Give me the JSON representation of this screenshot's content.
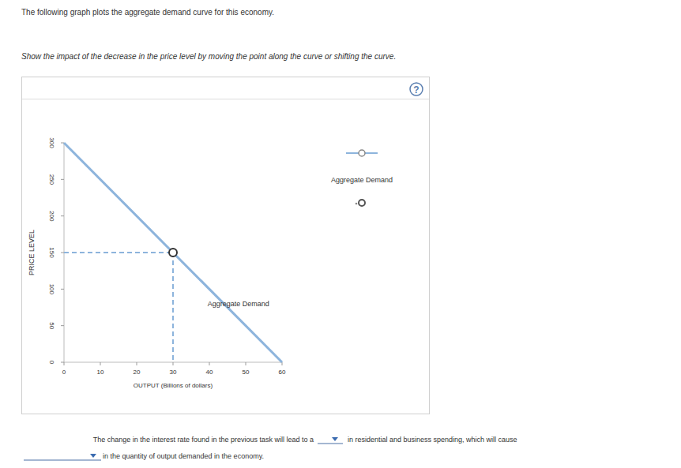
{
  "page": {
    "intro": "The following graph plots the aggregate demand curve for this economy.",
    "instruction": "Show the impact of the decrease in the price level by moving the point along the curve or shifting the curve.",
    "help_icon": "?",
    "sentence": [
      "The change in the interest rate found in the previous task will lead to a",
      "in residential and business spending, which will cause",
      "in the quantity of output demanded in the economy."
    ]
  },
  "chart_data": {
    "type": "line",
    "x_label": "OUTPUT (Billions of dollars)",
    "y_label": "PRICE LEVEL",
    "x": [
      0,
      60
    ],
    "series": [
      {
        "name": "Aggregate Demand",
        "color": "#8db4dc",
        "values": [
          300,
          0
        ]
      }
    ],
    "marked_point": {
      "x": 30,
      "y": 150
    },
    "annotations": [
      {
        "text": "Aggregate Demand",
        "x": 48,
        "y": 77
      }
    ],
    "xlim": [
      0,
      60
    ],
    "ylim": [
      0,
      300
    ],
    "xticks": [
      0,
      10,
      20,
      30,
      40,
      50,
      60
    ],
    "yticks": [
      0,
      50,
      100,
      150,
      200,
      250,
      300
    ],
    "legend": "right",
    "grid": false
  }
}
